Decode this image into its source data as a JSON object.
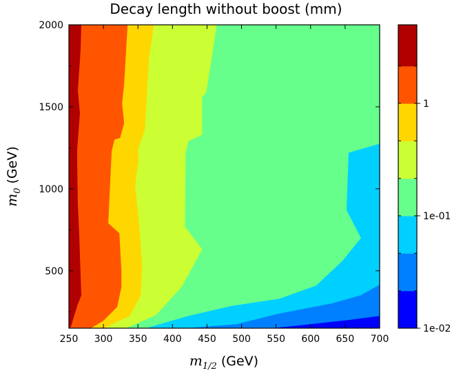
{
  "chart_data": {
    "type": "contour",
    "title": "Decay length without boost (mm)",
    "xlabel": {
      "var": "m",
      "sub": "1/2",
      "unit": " (GeV)"
    },
    "ylabel": {
      "var": "m",
      "sub": "0",
      "unit": " (GeV)"
    },
    "xlim": [
      250,
      700
    ],
    "ylim": [
      150,
      2000
    ],
    "x_ticks": [
      "250",
      "300",
      "350",
      "400",
      "450",
      "500",
      "550",
      "600",
      "650",
      "700"
    ],
    "y_ticks": [
      "500",
      "1000",
      "1500",
      "2000"
    ],
    "colorbar": {
      "scale": "log",
      "range": [
        0.01,
        5
      ],
      "tick_labels": [
        "1e-02",
        "1e-01",
        "1"
      ],
      "tick_values": [
        0.01,
        0.1,
        1
      ],
      "levels": [
        {
          "color": "#0000ff",
          "range": [
            0.01,
            0.0215
          ]
        },
        {
          "color": "#0080ff",
          "range": [
            0.0215,
            0.0464
          ]
        },
        {
          "color": "#00d0ff",
          "range": [
            0.0464,
            0.1
          ]
        },
        {
          "color": "#66ff8c",
          "range": [
            0.1,
            0.215
          ]
        },
        {
          "color": "#ccff33",
          "range": [
            0.215,
            0.464
          ]
        },
        {
          "color": "#ffd700",
          "range": [
            0.464,
            1.0
          ]
        },
        {
          "color": "#ff5500",
          "range": [
            1.0,
            2.15
          ]
        },
        {
          "color": "#b00000",
          "range": [
            2.15,
            5.0
          ]
        }
      ]
    },
    "regions": [
      {
        "level": 3,
        "boundary": [
          [
            250,
            150
          ],
          [
            700,
            150
          ],
          [
            700,
            2000
          ],
          [
            250,
            2000
          ]
        ]
      },
      {
        "level": 2,
        "boundary": [
          [
            700,
            1275
          ],
          [
            655,
            1220
          ],
          [
            652,
            870
          ],
          [
            673,
            700
          ],
          [
            646,
            560
          ],
          [
            608,
            410
          ],
          [
            555,
            330
          ],
          [
            485,
            285
          ],
          [
            423,
            225
          ],
          [
            362,
            150
          ],
          [
            700,
            150
          ]
        ]
      },
      {
        "level": 1,
        "boundary": [
          [
            700,
            415
          ],
          [
            672,
            350
          ],
          [
            630,
            300
          ],
          [
            555,
            240
          ],
          [
            493,
            175
          ],
          [
            420,
            150
          ],
          [
            700,
            150
          ]
        ]
      },
      {
        "level": 0,
        "boundary": [
          [
            700,
            225
          ],
          [
            655,
            200
          ],
          [
            595,
            172
          ],
          [
            545,
            150
          ],
          [
            700,
            150
          ]
        ]
      },
      {
        "level": 4,
        "boundary": [
          [
            250,
            150
          ],
          [
            250,
            2000
          ],
          [
            464,
            2000
          ],
          [
            455,
            1750
          ],
          [
            449,
            1590
          ],
          [
            443,
            1560
          ],
          [
            443,
            1330
          ],
          [
            423,
            1290
          ],
          [
            419,
            1210
          ],
          [
            418,
            770
          ],
          [
            443,
            630
          ],
          [
            413,
            400
          ],
          [
            376,
            230
          ],
          [
            333,
            150
          ]
        ]
      },
      {
        "level": 5,
        "boundary": [
          [
            250,
            150
          ],
          [
            250,
            2000
          ],
          [
            373,
            2000
          ],
          [
            366,
            1800
          ],
          [
            360,
            1360
          ],
          [
            350,
            1240
          ],
          [
            351,
            1180
          ],
          [
            346,
            1020
          ],
          [
            352,
            770
          ],
          [
            356,
            530
          ],
          [
            354,
            350
          ],
          [
            338,
            225
          ],
          [
            301,
            150
          ]
        ]
      },
      {
        "level": 6,
        "boundary": [
          [
            250,
            150
          ],
          [
            250,
            2000
          ],
          [
            335,
            2000
          ],
          [
            330,
            1640
          ],
          [
            327,
            1520
          ],
          [
            330,
            1400
          ],
          [
            324,
            1310
          ],
          [
            316,
            1300
          ],
          [
            312,
            1230
          ],
          [
            307,
            790
          ],
          [
            323,
            730
          ],
          [
            326,
            500
          ],
          [
            326,
            400
          ],
          [
            320,
            280
          ],
          [
            300,
            195
          ],
          [
            282,
            150
          ]
        ]
      },
      {
        "level": 7,
        "boundary": [
          [
            250,
            150
          ],
          [
            250,
            2000
          ],
          [
            268,
            2000
          ],
          [
            267,
            1850
          ],
          [
            263,
            1600
          ],
          [
            266,
            1460
          ],
          [
            262,
            1240
          ],
          [
            262,
            1160
          ],
          [
            263,
            900
          ],
          [
            265,
            720
          ],
          [
            267,
            470
          ],
          [
            268,
            350
          ],
          [
            262,
            285
          ],
          [
            253,
            160
          ]
        ]
      }
    ]
  }
}
